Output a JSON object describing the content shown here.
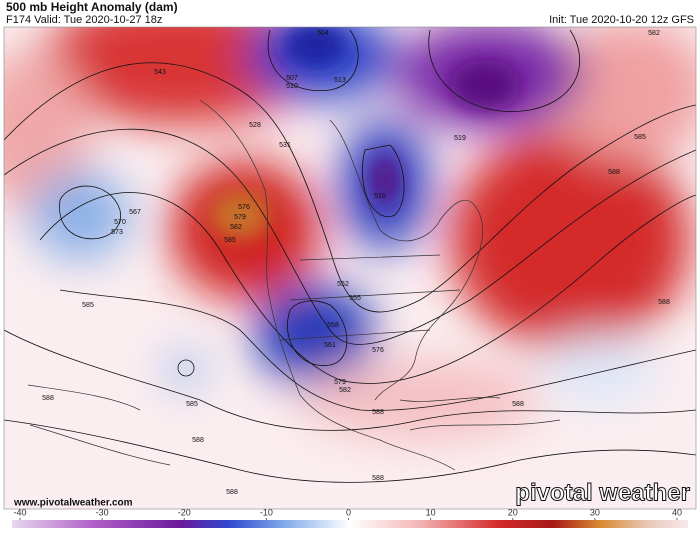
{
  "header": {
    "title": "500 mb Height Anomaly (dam)",
    "valid": "F174 Valid: Tue 2020-10-27 18z",
    "init": "Init: Tue 2020-10-20 12z GFS"
  },
  "footer": {
    "url": "www.pivotalweather.com",
    "logo": "pivotal weather"
  },
  "colorbar": {
    "ticks": [
      -40,
      -30,
      -20,
      -10,
      0,
      10,
      20,
      30,
      40
    ]
  },
  "contour_labels": [
    "543",
    "528",
    "531",
    "567",
    "570",
    "573",
    "576",
    "579",
    "582",
    "585",
    "585",
    "585",
    "588",
    "588",
    "588",
    "588",
    "588",
    "588",
    "588",
    "585",
    "588",
    "582",
    "510",
    "552",
    "555",
    "558",
    "561",
    "576",
    "579",
    "582",
    "507",
    "504",
    "510",
    "513",
    "519"
  ]
}
